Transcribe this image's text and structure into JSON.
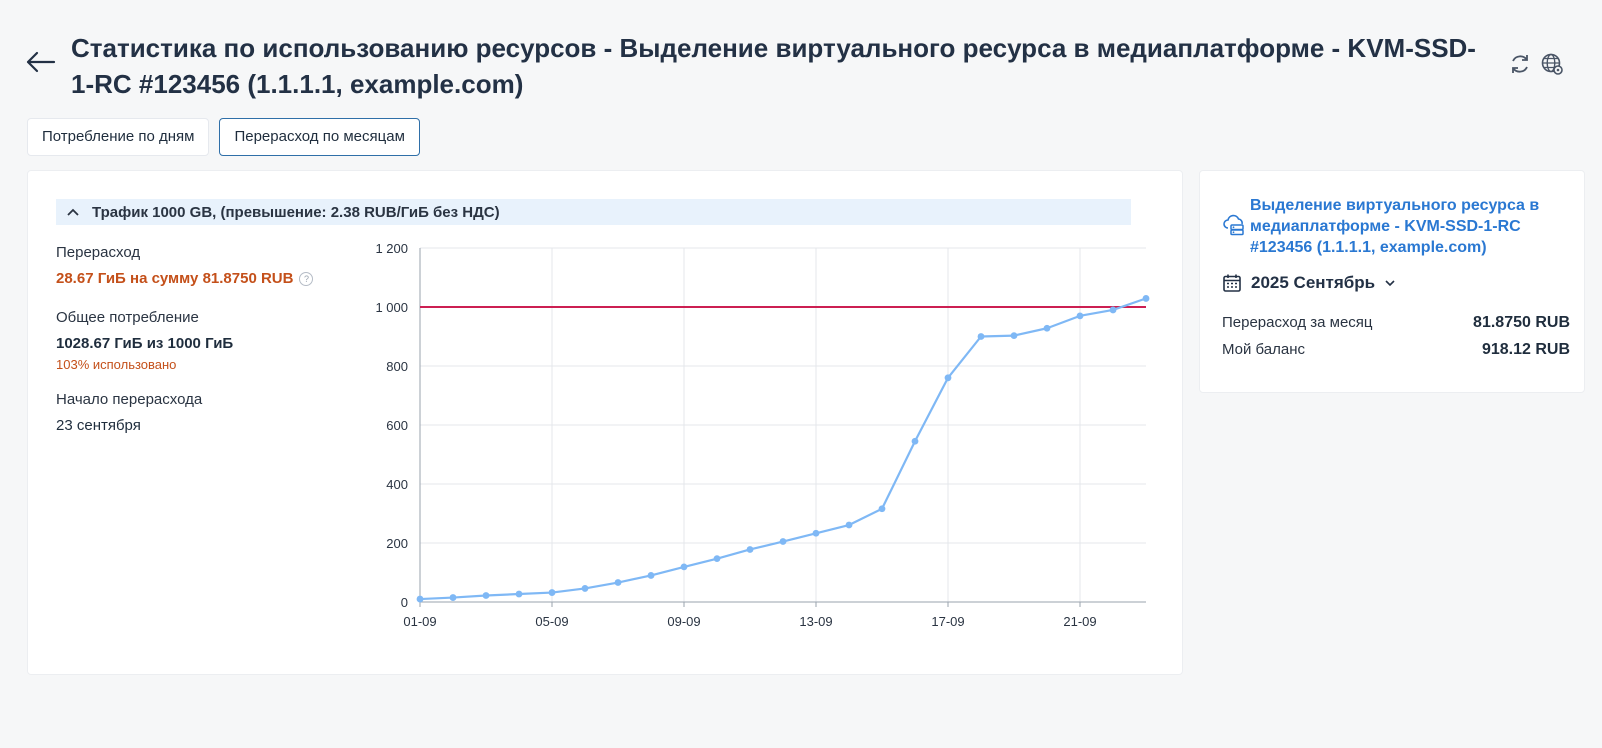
{
  "header": {
    "title": "Статистика по использованию ресурсов - Выделение виртуального ресурса в медиаплатформе - KVM-SSD-1-RC #123456 (1.1.1.1, example.com)",
    "back_icon": "arrow-left-icon",
    "icons": [
      "refresh-icon",
      "globe-settings-icon"
    ]
  },
  "tabs": [
    {
      "label": "Потребление по дням",
      "active": false
    },
    {
      "label": "Перерасход по месяцам",
      "active": true
    }
  ],
  "section": {
    "title": "Трафик 1000 GB, (превышение: 2.38 RUB/ГиБ без НДС)",
    "expanded": true
  },
  "stats": {
    "overuse_label": "Перерасход",
    "overuse_value": "28.67 ГиБ на сумму 81.8750 RUB",
    "total_label": "Общее потребление",
    "total_value": "1028.67 ГиБ из 1000 ГиБ",
    "total_note": "103% использовано",
    "start_label": "Начало перерасхода",
    "start_value": "23 сентября"
  },
  "chart_data": {
    "type": "line",
    "x": [
      "01-09",
      "02-09",
      "03-09",
      "04-09",
      "05-09",
      "06-09",
      "07-09",
      "08-09",
      "09-09",
      "10-09",
      "11-09",
      "12-09",
      "13-09",
      "14-09",
      "15-09",
      "16-09",
      "17-09",
      "18-09",
      "19-09",
      "20-09",
      "21-09",
      "22-09",
      "23-09"
    ],
    "xtick_labels": [
      "01-09",
      "05-09",
      "09-09",
      "13-09",
      "17-09",
      "21-09"
    ],
    "series": [
      {
        "values": [
          10,
          15,
          22,
          27,
          32,
          46,
          66,
          90,
          119,
          147,
          178,
          205,
          233,
          261,
          316,
          545,
          760,
          900,
          903,
          928,
          970,
          990,
          1029
        ]
      }
    ],
    "limit_line": 1000,
    "ylim": [
      0,
      1200
    ],
    "yticks": [
      "0",
      "200",
      "400",
      "600",
      "800",
      "1 000",
      "1 200"
    ],
    "grid": true,
    "colors": {
      "line": "#7fb8f5",
      "limit": "#cc1f52"
    }
  },
  "side": {
    "resource_label": "Выделение виртуального ресурса в медиаплатформе - KVM-SSD-1-RC #123456 (1.1.1.1, example.com)",
    "resource_icon": "cloud-server-icon",
    "period_label": "2025 Сентябрь",
    "period_icon": "calendar-icon",
    "rows": [
      {
        "label": "Перерасход за месяц",
        "value": "81.8750 RUB"
      },
      {
        "label": "Мой баланс",
        "value": "918.12 RUB"
      }
    ]
  }
}
